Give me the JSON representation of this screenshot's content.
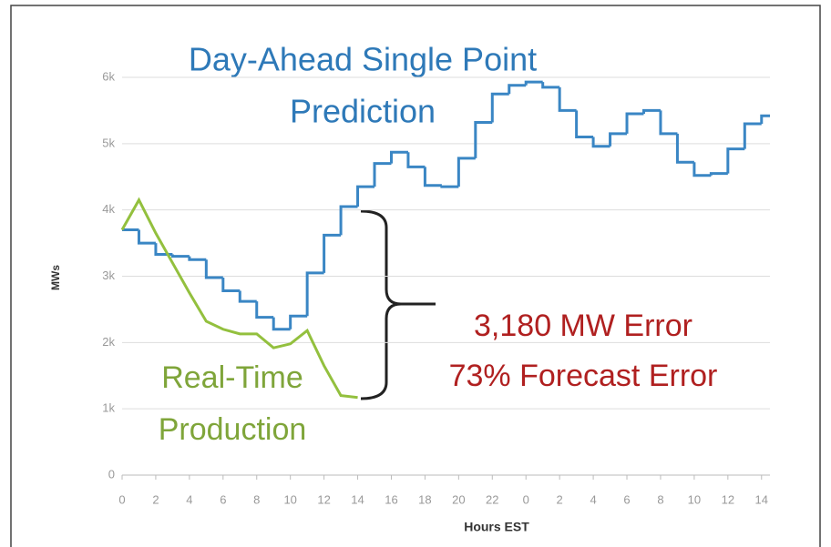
{
  "chart_data": {
    "type": "line",
    "title": [
      "Day-Ahead Single Point",
      "Prediction"
    ],
    "xlabel": "Hours EST",
    "ylabel": "MWs",
    "annotations": [
      [
        "Real-Time",
        "Production"
      ],
      "3,180 MW Error",
      "73% Forecast Error"
    ],
    "xlim": [
      0,
      38.5
    ],
    "xticks": [
      0,
      2,
      4,
      6,
      8,
      10,
      12,
      14,
      16,
      18,
      20,
      22,
      {
        "value": 24,
        "label": "0"
      },
      {
        "value": 26,
        "label": "2"
      },
      {
        "value": 28,
        "label": "4"
      },
      {
        "value": 30,
        "label": "6"
      },
      {
        "value": 32,
        "label": "8"
      },
      {
        "value": 34,
        "label": "10"
      },
      {
        "value": 36,
        "label": "12"
      },
      {
        "value": 38,
        "label": "14"
      }
    ],
    "ylim": [
      0,
      6000
    ],
    "yticks": [
      0,
      {
        "value": 1000,
        "label": "1k"
      },
      {
        "value": 2000,
        "label": "2k"
      },
      {
        "value": 3000,
        "label": "3k"
      },
      {
        "value": 4000,
        "label": "4k"
      },
      {
        "value": 5000,
        "label": "5k"
      },
      {
        "value": 6000,
        "label": "6k"
      }
    ],
    "grid": true,
    "series": [
      {
        "name": "Day-Ahead Single Point Prediction",
        "color": "#3a86c4",
        "step": true,
        "x": [
          0,
          1,
          2,
          3,
          4,
          5,
          6,
          7,
          8,
          9,
          10,
          11,
          12,
          13,
          14,
          15,
          16,
          17,
          18,
          19,
          20,
          21,
          22,
          23,
          24,
          25,
          26,
          27,
          28,
          29,
          30,
          31,
          32,
          33,
          34,
          35,
          36,
          37,
          38
        ],
        "values": [
          3700,
          3500,
          3330,
          3300,
          3250,
          2980,
          2780,
          2620,
          2380,
          2200,
          2400,
          3050,
          3620,
          4050,
          4350,
          4700,
          4870,
          4650,
          4370,
          4350,
          4780,
          5320,
          5750,
          5880,
          5930,
          5850,
          5500,
          5100,
          4960,
          5150,
          5450,
          5500,
          5150,
          4720,
          4520,
          4550,
          4920,
          5300,
          5420
        ]
      },
      {
        "name": "Real-Time Production",
        "color": "#93c03e",
        "x": [
          0,
          1,
          2,
          3,
          4,
          5,
          6,
          7,
          8,
          9,
          10,
          11,
          12,
          13,
          14
        ],
        "values": [
          3700,
          4150,
          3650,
          3200,
          2750,
          2320,
          2200,
          2130,
          2130,
          1920,
          1980,
          2180,
          1650,
          1200,
          1170
        ]
      }
    ]
  }
}
